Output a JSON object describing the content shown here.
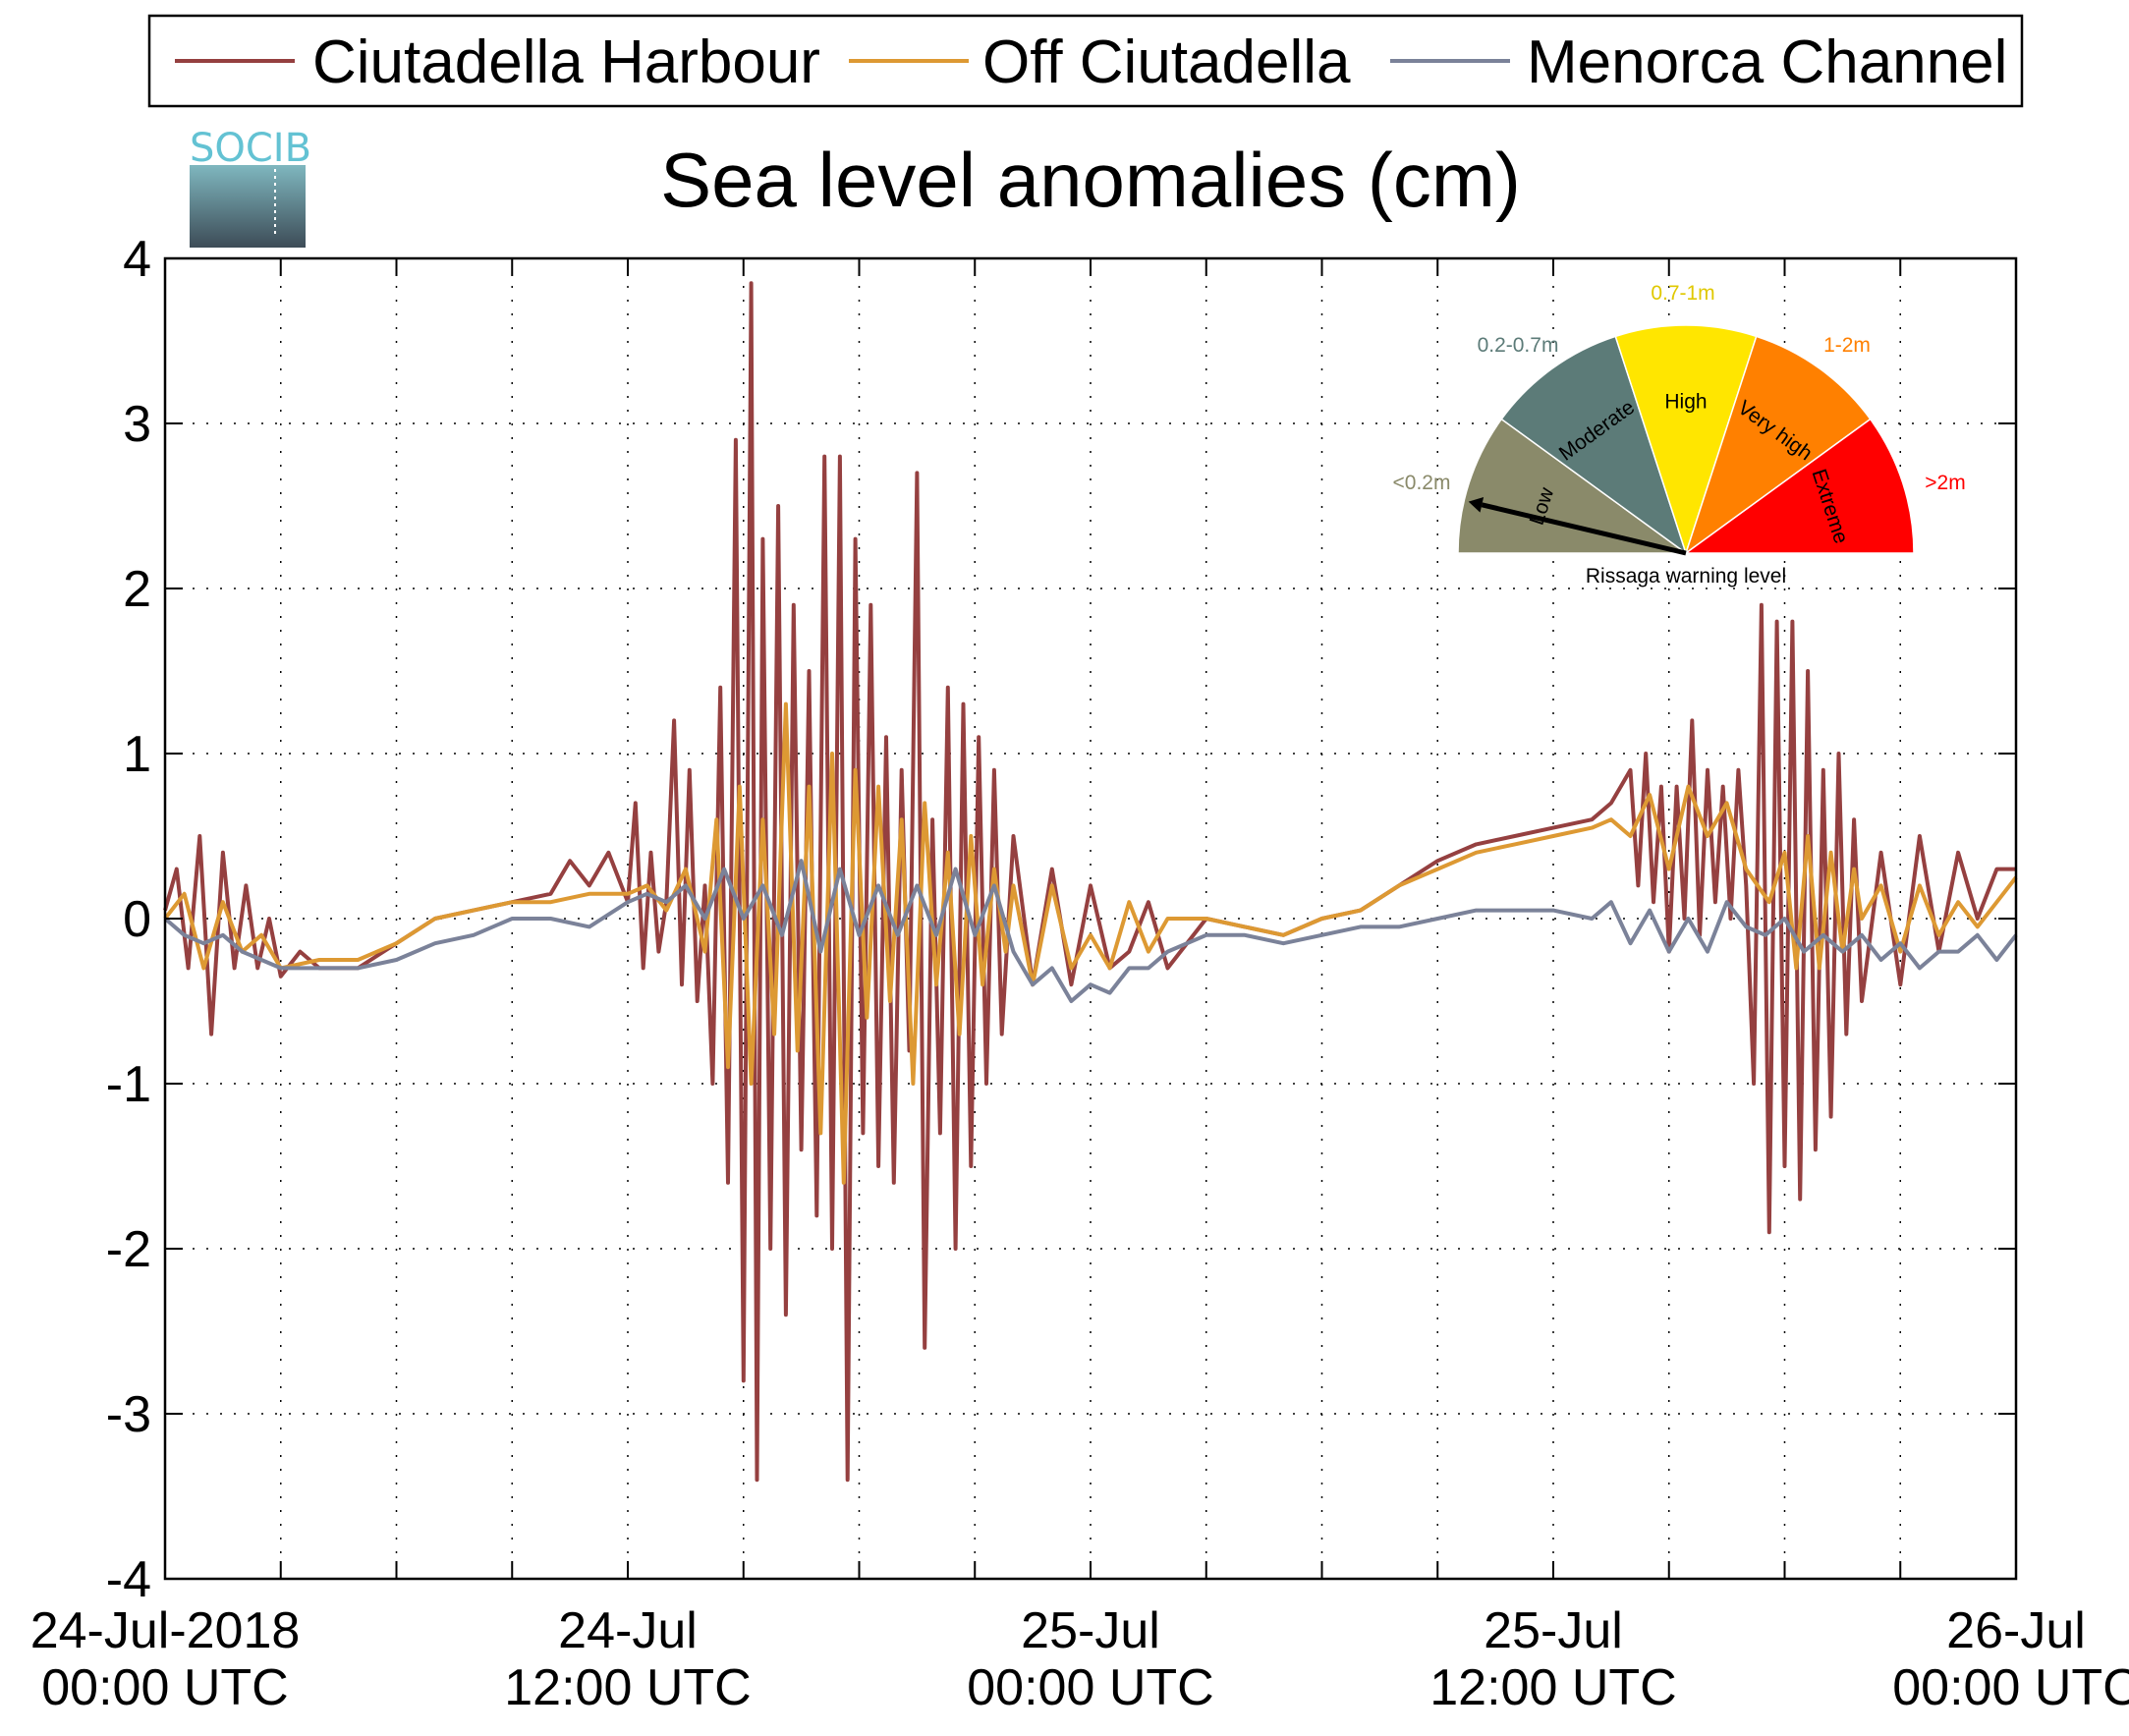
{
  "logo": {
    "text": "SOCIB"
  },
  "chart_data": {
    "type": "line",
    "title": "Sea level anomalies (cm)",
    "xlabel": "",
    "ylabel": "",
    "x_unit": "hours since 24-Jul-2018 00:00 UTC",
    "xlim": [
      0,
      48
    ],
    "ylim": [
      -4,
      4
    ],
    "yticks": [
      "-4",
      "-3",
      "-2",
      "-1",
      "0",
      "1",
      "2",
      "3",
      "4"
    ],
    "xticks": [
      {
        "line1": "24-Jul-2018",
        "line2": "00:00 UTC"
      },
      {
        "line1": "24-Jul",
        "line2": "12:00 UTC"
      },
      {
        "line1": "25-Jul",
        "line2": "00:00 UTC"
      },
      {
        "line1": "25-Jul",
        "line2": "12:00 UTC"
      },
      {
        "line1": "26-Jul",
        "line2": "00:00 UTC"
      }
    ],
    "grid": true,
    "legend_position": "top",
    "series": [
      {
        "name": "Ciutadella Harbour",
        "color": "#954040",
        "points": [
          [
            0.0,
            0.05
          ],
          [
            0.3,
            0.3
          ],
          [
            0.6,
            -0.3
          ],
          [
            0.9,
            0.5
          ],
          [
            1.2,
            -0.7
          ],
          [
            1.5,
            0.4
          ],
          [
            1.8,
            -0.3
          ],
          [
            2.1,
            0.2
          ],
          [
            2.4,
            -0.3
          ],
          [
            2.7,
            0.0
          ],
          [
            3.0,
            -0.35
          ],
          [
            3.5,
            -0.2
          ],
          [
            4.0,
            -0.3
          ],
          [
            5.0,
            -0.3
          ],
          [
            6.0,
            -0.15
          ],
          [
            7.0,
            0.0
          ],
          [
            8.0,
            0.05
          ],
          [
            9.0,
            0.1
          ],
          [
            10.0,
            0.15
          ],
          [
            10.5,
            0.35
          ],
          [
            11.0,
            0.2
          ],
          [
            11.5,
            0.4
          ],
          [
            12.0,
            0.1
          ],
          [
            12.2,
            0.7
          ],
          [
            12.4,
            -0.3
          ],
          [
            12.6,
            0.4
          ],
          [
            12.8,
            -0.2
          ],
          [
            13.0,
            0.1
          ],
          [
            13.2,
            1.2
          ],
          [
            13.4,
            -0.4
          ],
          [
            13.6,
            0.9
          ],
          [
            13.8,
            -0.5
          ],
          [
            14.0,
            0.2
          ],
          [
            14.2,
            -1.0
          ],
          [
            14.4,
            1.4
          ],
          [
            14.6,
            -1.6
          ],
          [
            14.8,
            2.9
          ],
          [
            15.0,
            -2.8
          ],
          [
            15.2,
            3.85
          ],
          [
            15.35,
            -3.4
          ],
          [
            15.5,
            2.3
          ],
          [
            15.7,
            -2.0
          ],
          [
            15.9,
            2.5
          ],
          [
            16.1,
            -2.4
          ],
          [
            16.3,
            1.9
          ],
          [
            16.5,
            -1.4
          ],
          [
            16.7,
            1.5
          ],
          [
            16.9,
            -1.8
          ],
          [
            17.1,
            2.8
          ],
          [
            17.3,
            -2.0
          ],
          [
            17.5,
            2.8
          ],
          [
            17.7,
            -3.4
          ],
          [
            17.9,
            2.3
          ],
          [
            18.1,
            -1.3
          ],
          [
            18.3,
            1.9
          ],
          [
            18.5,
            -1.5
          ],
          [
            18.7,
            1.1
          ],
          [
            18.9,
            -1.6
          ],
          [
            19.1,
            0.9
          ],
          [
            19.3,
            -0.8
          ],
          [
            19.5,
            2.7
          ],
          [
            19.7,
            -2.6
          ],
          [
            19.9,
            0.6
          ],
          [
            20.1,
            -1.3
          ],
          [
            20.3,
            1.4
          ],
          [
            20.5,
            -2.0
          ],
          [
            20.7,
            1.3
          ],
          [
            20.9,
            -1.5
          ],
          [
            21.1,
            1.1
          ],
          [
            21.3,
            -1.0
          ],
          [
            21.5,
            0.9
          ],
          [
            21.7,
            -0.7
          ],
          [
            22.0,
            0.5
          ],
          [
            22.5,
            -0.4
          ],
          [
            23.0,
            0.3
          ],
          [
            23.5,
            -0.4
          ],
          [
            24.0,
            0.2
          ],
          [
            24.5,
            -0.3
          ],
          [
            25.0,
            -0.2
          ],
          [
            25.5,
            0.1
          ],
          [
            26.0,
            -0.3
          ],
          [
            27.0,
            0.0
          ],
          [
            28.0,
            -0.05
          ],
          [
            29.0,
            -0.1
          ],
          [
            30.0,
            0.0
          ],
          [
            31.0,
            0.05
          ],
          [
            32.0,
            0.2
          ],
          [
            33.0,
            0.35
          ],
          [
            34.0,
            0.45
          ],
          [
            35.0,
            0.5
          ],
          [
            36.0,
            0.55
          ],
          [
            37.0,
            0.6
          ],
          [
            37.5,
            0.7
          ],
          [
            38.0,
            0.9
          ],
          [
            38.2,
            0.2
          ],
          [
            38.4,
            1.0
          ],
          [
            38.6,
            0.1
          ],
          [
            38.8,
            0.8
          ],
          [
            39.0,
            -0.2
          ],
          [
            39.2,
            0.8
          ],
          [
            39.4,
            0.0
          ],
          [
            39.6,
            1.2
          ],
          [
            39.8,
            -0.1
          ],
          [
            40.0,
            0.9
          ],
          [
            40.2,
            0.1
          ],
          [
            40.4,
            0.8
          ],
          [
            40.6,
            0.0
          ],
          [
            40.8,
            0.9
          ],
          [
            41.0,
            0.2
          ],
          [
            41.2,
            -1.0
          ],
          [
            41.4,
            1.9
          ],
          [
            41.6,
            -1.9
          ],
          [
            41.8,
            1.8
          ],
          [
            42.0,
            -1.5
          ],
          [
            42.2,
            1.8
          ],
          [
            42.4,
            -1.7
          ],
          [
            42.6,
            1.5
          ],
          [
            42.8,
            -1.4
          ],
          [
            43.0,
            0.9
          ],
          [
            43.2,
            -1.2
          ],
          [
            43.4,
            1.0
          ],
          [
            43.6,
            -0.7
          ],
          [
            43.8,
            0.6
          ],
          [
            44.0,
            -0.5
          ],
          [
            44.5,
            0.4
          ],
          [
            45.0,
            -0.4
          ],
          [
            45.5,
            0.5
          ],
          [
            46.0,
            -0.2
          ],
          [
            46.5,
            0.4
          ],
          [
            47.0,
            0.0
          ],
          [
            47.5,
            0.3
          ],
          [
            48.0,
            0.3
          ]
        ]
      },
      {
        "name": "Off Ciutadella",
        "color": "#dd9933",
        "points": [
          [
            0.0,
            0.0
          ],
          [
            0.5,
            0.15
          ],
          [
            1.0,
            -0.3
          ],
          [
            1.5,
            0.1
          ],
          [
            2.0,
            -0.2
          ],
          [
            2.5,
            -0.1
          ],
          [
            3.0,
            -0.3
          ],
          [
            4.0,
            -0.25
          ],
          [
            5.0,
            -0.25
          ],
          [
            6.0,
            -0.15
          ],
          [
            7.0,
            0.0
          ],
          [
            8.0,
            0.05
          ],
          [
            9.0,
            0.1
          ],
          [
            10.0,
            0.1
          ],
          [
            11.0,
            0.15
          ],
          [
            12.0,
            0.15
          ],
          [
            12.5,
            0.2
          ],
          [
            13.0,
            0.05
          ],
          [
            13.5,
            0.3
          ],
          [
            14.0,
            -0.2
          ],
          [
            14.3,
            0.6
          ],
          [
            14.6,
            -0.9
          ],
          [
            14.9,
            0.8
          ],
          [
            15.2,
            -1.0
          ],
          [
            15.5,
            0.6
          ],
          [
            15.8,
            -0.7
          ],
          [
            16.1,
            1.3
          ],
          [
            16.4,
            -0.8
          ],
          [
            16.7,
            0.8
          ],
          [
            17.0,
            -1.3
          ],
          [
            17.3,
            1.0
          ],
          [
            17.6,
            -1.6
          ],
          [
            17.9,
            0.9
          ],
          [
            18.2,
            -0.6
          ],
          [
            18.5,
            0.8
          ],
          [
            18.8,
            -0.5
          ],
          [
            19.1,
            0.6
          ],
          [
            19.4,
            -1.0
          ],
          [
            19.7,
            0.7
          ],
          [
            20.0,
            -0.4
          ],
          [
            20.3,
            0.4
          ],
          [
            20.6,
            -0.7
          ],
          [
            20.9,
            0.5
          ],
          [
            21.2,
            -0.4
          ],
          [
            21.5,
            0.3
          ],
          [
            21.8,
            -0.2
          ],
          [
            22.0,
            0.2
          ],
          [
            22.5,
            -0.4
          ],
          [
            23.0,
            0.2
          ],
          [
            23.5,
            -0.3
          ],
          [
            24.0,
            -0.1
          ],
          [
            24.5,
            -0.3
          ],
          [
            25.0,
            0.1
          ],
          [
            25.5,
            -0.2
          ],
          [
            26.0,
            0.0
          ],
          [
            27.0,
            0.0
          ],
          [
            28.0,
            -0.05
          ],
          [
            29.0,
            -0.1
          ],
          [
            30.0,
            0.0
          ],
          [
            31.0,
            0.05
          ],
          [
            32.0,
            0.2
          ],
          [
            33.0,
            0.3
          ],
          [
            34.0,
            0.4
          ],
          [
            35.0,
            0.45
          ],
          [
            36.0,
            0.5
          ],
          [
            37.0,
            0.55
          ],
          [
            37.5,
            0.6
          ],
          [
            38.0,
            0.5
          ],
          [
            38.5,
            0.75
          ],
          [
            39.0,
            0.3
          ],
          [
            39.5,
            0.8
          ],
          [
            40.0,
            0.5
          ],
          [
            40.5,
            0.7
          ],
          [
            41.0,
            0.3
          ],
          [
            41.3,
            0.2
          ],
          [
            41.6,
            0.1
          ],
          [
            42.0,
            0.4
          ],
          [
            42.3,
            -0.3
          ],
          [
            42.6,
            0.5
          ],
          [
            42.9,
            -0.3
          ],
          [
            43.2,
            0.4
          ],
          [
            43.5,
            -0.2
          ],
          [
            43.8,
            0.3
          ],
          [
            44.0,
            0.0
          ],
          [
            44.5,
            0.2
          ],
          [
            45.0,
            -0.2
          ],
          [
            45.5,
            0.2
          ],
          [
            46.0,
            -0.1
          ],
          [
            46.5,
            0.1
          ],
          [
            47.0,
            -0.05
          ],
          [
            47.5,
            0.1
          ],
          [
            48.0,
            0.25
          ]
        ]
      },
      {
        "name": "Menorca Channel",
        "color": "#7b8299",
        "points": [
          [
            0.0,
            0.0
          ],
          [
            0.5,
            -0.1
          ],
          [
            1.0,
            -0.15
          ],
          [
            1.5,
            -0.1
          ],
          [
            2.0,
            -0.2
          ],
          [
            2.5,
            -0.25
          ],
          [
            3.0,
            -0.3
          ],
          [
            4.0,
            -0.3
          ],
          [
            5.0,
            -0.3
          ],
          [
            6.0,
            -0.25
          ],
          [
            7.0,
            -0.15
          ],
          [
            8.0,
            -0.1
          ],
          [
            9.0,
            0.0
          ],
          [
            10.0,
            0.0
          ],
          [
            11.0,
            -0.05
          ],
          [
            12.0,
            0.1
          ],
          [
            12.5,
            0.15
          ],
          [
            13.0,
            0.1
          ],
          [
            13.5,
            0.2
          ],
          [
            14.0,
            0.0
          ],
          [
            14.5,
            0.3
          ],
          [
            15.0,
            0.0
          ],
          [
            15.5,
            0.2
          ],
          [
            16.0,
            -0.1
          ],
          [
            16.5,
            0.35
          ],
          [
            17.0,
            -0.2
          ],
          [
            17.5,
            0.3
          ],
          [
            18.0,
            -0.1
          ],
          [
            18.5,
            0.2
          ],
          [
            19.0,
            -0.1
          ],
          [
            19.5,
            0.2
          ],
          [
            20.0,
            -0.1
          ],
          [
            20.5,
            0.3
          ],
          [
            21.0,
            -0.1
          ],
          [
            21.5,
            0.2
          ],
          [
            22.0,
            -0.2
          ],
          [
            22.5,
            -0.4
          ],
          [
            23.0,
            -0.3
          ],
          [
            23.5,
            -0.5
          ],
          [
            24.0,
            -0.4
          ],
          [
            24.5,
            -0.45
          ],
          [
            25.0,
            -0.3
          ],
          [
            25.5,
            -0.3
          ],
          [
            26.0,
            -0.2
          ],
          [
            27.0,
            -0.1
          ],
          [
            28.0,
            -0.1
          ],
          [
            29.0,
            -0.15
          ],
          [
            30.0,
            -0.1
          ],
          [
            31.0,
            -0.05
          ],
          [
            32.0,
            -0.05
          ],
          [
            33.0,
            0.0
          ],
          [
            34.0,
            0.05
          ],
          [
            35.0,
            0.05
          ],
          [
            36.0,
            0.05
          ],
          [
            37.0,
            0.0
          ],
          [
            37.5,
            0.1
          ],
          [
            38.0,
            -0.15
          ],
          [
            38.5,
            0.05
          ],
          [
            39.0,
            -0.2
          ],
          [
            39.5,
            0.0
          ],
          [
            40.0,
            -0.2
          ],
          [
            40.5,
            0.1
          ],
          [
            41.0,
            -0.05
          ],
          [
            41.5,
            -0.1
          ],
          [
            42.0,
            0.0
          ],
          [
            42.5,
            -0.2
          ],
          [
            43.0,
            -0.1
          ],
          [
            43.5,
            -0.2
          ],
          [
            44.0,
            -0.1
          ],
          [
            44.5,
            -0.25
          ],
          [
            45.0,
            -0.15
          ],
          [
            45.5,
            -0.3
          ],
          [
            46.0,
            -0.2
          ],
          [
            46.5,
            -0.2
          ],
          [
            47.0,
            -0.1
          ],
          [
            47.5,
            -0.25
          ],
          [
            48.0,
            -0.1
          ]
        ]
      }
    ]
  },
  "gauge": {
    "title": "Rissaga warning level",
    "selected_level": "Low",
    "levels": [
      {
        "label": "Low",
        "range": "<0.2m",
        "color": "#8a8a6a",
        "range_color": "#8a8a6a"
      },
      {
        "label": "Moderate",
        "range": "0.2-0.7m",
        "color": "#5c7b78",
        "range_color": "#5c7b78"
      },
      {
        "label": "High",
        "range": "0.7-1m",
        "color": "#ffe600",
        "range_color": "#e0c800"
      },
      {
        "label": "Very high",
        "range": "1-2m",
        "color": "#ff8000",
        "range_color": "#ff8000"
      },
      {
        "label": "Extreme",
        "range": ">2m",
        "color": "#ff0000",
        "range_color": "#ff0000"
      }
    ]
  }
}
